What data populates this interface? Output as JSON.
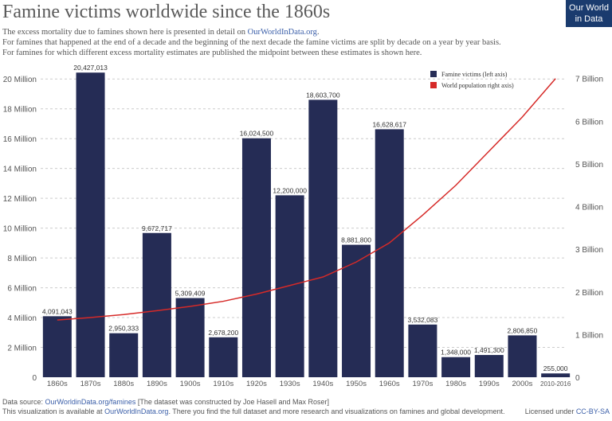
{
  "chart_data": {
    "type": "bar",
    "title": "Famine victims worldwide since the 1860s",
    "subtitle": [
      {
        "text": "The excess mortality due to famines shown here is presented in detail on ",
        "link": "OurWorldInData.org",
        "after": "."
      },
      {
        "text": "For famines that happened at the end of a decade and the beginning of the next decade the famine victims are split by decade on a year by year basis."
      },
      {
        "text": "For famines for which different excess mortality estimates are published the midpoint between these estimates is shown here."
      }
    ],
    "logo": [
      "Our World",
      "in Data"
    ],
    "categories": [
      "1860s",
      "1870s",
      "1880s",
      "1890s",
      "1900s",
      "1910s",
      "1920s",
      "1930s",
      "1940s",
      "1950s",
      "1960s",
      "1970s",
      "1980s",
      "1990s",
      "2000s",
      "2010-2016"
    ],
    "series": [
      {
        "name": "Famine victims (left axis)",
        "color": "#252c55",
        "values": [
          4091043,
          20427013,
          2950333,
          9672717,
          5309409,
          2678200,
          16024500,
          12200000,
          18603700,
          8881800,
          16628617,
          3532083,
          1348000,
          1491300,
          2806850,
          255000
        ],
        "value_labels": [
          "4,091,043",
          "20,427,013",
          "2,950,333",
          "9,672,717",
          "5,309,409",
          "2,678,200",
          "16,024,500",
          "12,200,000",
          "18,603,700",
          "8,881,800",
          "16,628,617",
          "3,532,083",
          "1,348,000",
          "1,491,300",
          "2,806,850",
          "255,000"
        ]
      },
      {
        "name": "World population right axis)",
        "color": "#d62a28",
        "type": "line",
        "axis": "y2",
        "values": [
          1340000000,
          1400000000,
          1470000000,
          1560000000,
          1660000000,
          1780000000,
          1950000000,
          2150000000,
          2350000000,
          2700000000,
          3150000000,
          3800000000,
          4500000000,
          5300000000,
          6100000000,
          7000000000
        ]
      }
    ],
    "ylim": [
      0,
      20600000
    ],
    "yticks": [
      0,
      {
        "value": 2000000,
        "label": "2 Million"
      },
      {
        "value": 4000000,
        "label": "4 Million"
      },
      {
        "value": 6000000,
        "label": "6 Million"
      },
      {
        "value": 8000000,
        "label": "8 Million"
      },
      {
        "value": 10000000,
        "label": "10 Million"
      },
      {
        "value": 12000000,
        "label": "12 Million"
      },
      {
        "value": 14000000,
        "label": "14 Million"
      },
      {
        "value": 16000000,
        "label": "16 Million"
      },
      {
        "value": 18000000,
        "label": "18 Million"
      },
      {
        "value": 20000000,
        "label": "20 Million"
      }
    ],
    "y2lim": [
      0,
      7200000000
    ],
    "y2ticks": [
      0,
      {
        "value": 1000000000,
        "label": "1 Billion"
      },
      {
        "value": 2000000000,
        "label": "2 Billion"
      },
      {
        "value": 3000000000,
        "label": "3 Billion"
      },
      {
        "value": 4000000000,
        "label": "4 Billion"
      },
      {
        "value": 5000000000,
        "label": "5 Billion"
      },
      {
        "value": 6000000000,
        "label": "6 Billion"
      },
      {
        "value": 7000000000,
        "label": "7 Billion"
      }
    ],
    "grid": true,
    "legend": "top-right",
    "footer": {
      "source": {
        "text": "Data source: ",
        "link": "OurWorldinData.org/famines",
        "after": " [The dataset was constructed by Joe Hasell and Max Roser]"
      },
      "availability": {
        "text": "This visualization is available at ",
        "link": "OurWorldInData.org",
        "after": ". There you find the full dataset and more research and visualizations on famines and global development."
      },
      "license": {
        "text": "Licensed under ",
        "link": "CC-BY-SA"
      }
    }
  }
}
